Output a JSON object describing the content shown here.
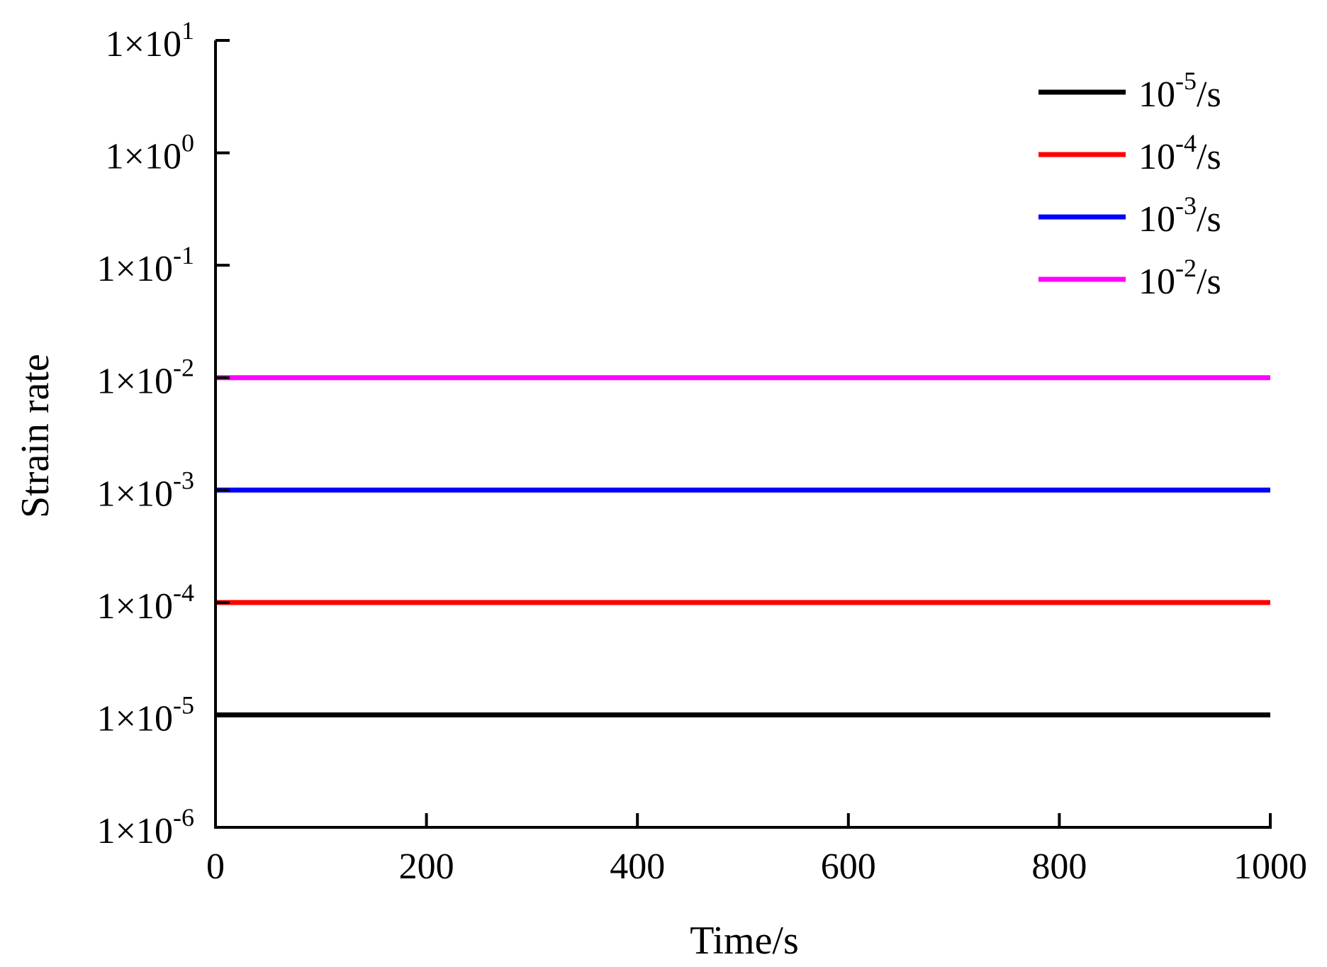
{
  "chart_data": {
    "type": "line",
    "xlabel": "Time/s",
    "ylabel": "Strain rate",
    "xlim": [
      0,
      1000
    ],
    "ylim": [
      1e-06,
      10
    ],
    "yscale": "log",
    "grid": false,
    "legend_position": "top-right",
    "x_ticks": [
      {
        "value": 0,
        "label": "0"
      },
      {
        "value": 200,
        "label": "200"
      },
      {
        "value": 400,
        "label": "400"
      },
      {
        "value": 600,
        "label": "600"
      },
      {
        "value": 800,
        "label": "800"
      },
      {
        "value": 1000,
        "label": "1000"
      }
    ],
    "y_ticks": [
      {
        "value": 10,
        "mantissa": "1×10",
        "exponent": "1"
      },
      {
        "value": 1,
        "mantissa": "1×10",
        "exponent": "0"
      },
      {
        "value": 0.1,
        "mantissa": "1×10",
        "exponent": "-1"
      },
      {
        "value": 0.01,
        "mantissa": "1×10",
        "exponent": "-2"
      },
      {
        "value": 0.001,
        "mantissa": "1×10",
        "exponent": "-3"
      },
      {
        "value": 0.0001,
        "mantissa": "1×10",
        "exponent": "-4"
      },
      {
        "value": 1e-05,
        "mantissa": "1×10",
        "exponent": "-5"
      },
      {
        "value": 1e-06,
        "mantissa": "1×10",
        "exponent": "-6"
      }
    ],
    "series": [
      {
        "name": "10-5/s",
        "legend_base": "10",
        "legend_exponent": "-5",
        "legend_unit": "/s",
        "color": "#000000",
        "x": [
          0,
          1000
        ],
        "y": [
          1e-05,
          1e-05
        ]
      },
      {
        "name": "10-4/s",
        "legend_base": "10",
        "legend_exponent": "-4",
        "legend_unit": "/s",
        "color": "#ff0000",
        "x": [
          0,
          1000
        ],
        "y": [
          0.0001,
          0.0001
        ]
      },
      {
        "name": "10-3/s",
        "legend_base": "10",
        "legend_exponent": "-3",
        "legend_unit": "/s",
        "color": "#0000ff",
        "x": [
          0,
          1000
        ],
        "y": [
          0.001,
          0.001
        ]
      },
      {
        "name": "10-2/s",
        "legend_base": "10",
        "legend_exponent": "-2",
        "legend_unit": "/s",
        "color": "#ff00ff",
        "x": [
          0,
          1000
        ],
        "y": [
          0.01,
          0.01
        ]
      }
    ]
  }
}
